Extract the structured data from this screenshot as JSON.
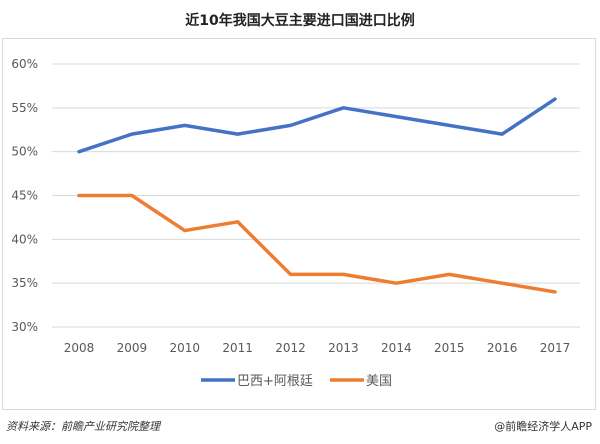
{
  "chart_data": {
    "type": "line",
    "title": "近10年我国大豆主要进口国进口比例",
    "categories": [
      "2008",
      "2009",
      "2010",
      "2011",
      "2012",
      "2013",
      "2014",
      "2015",
      "2016",
      "2017"
    ],
    "series": [
      {
        "name": "巴西+阿根廷",
        "color": "#4472C4",
        "values": [
          50,
          52,
          53,
          52,
          53,
          55,
          54,
          53,
          52,
          56
        ]
      },
      {
        "name": "美国",
        "color": "#ED7D31",
        "values": [
          45,
          45,
          41,
          42,
          36,
          36,
          35,
          36,
          35,
          34
        ]
      }
    ],
    "ylim": [
      30,
      60
    ],
    "yticks": [
      "30%",
      "35%",
      "40%",
      "45%",
      "50%",
      "55%",
      "60%"
    ],
    "grid": true,
    "legend": "bottom"
  },
  "footer": {
    "source": "资料来源：前瞻产业研究院整理",
    "credit": "@前瞻经济学人APP"
  }
}
